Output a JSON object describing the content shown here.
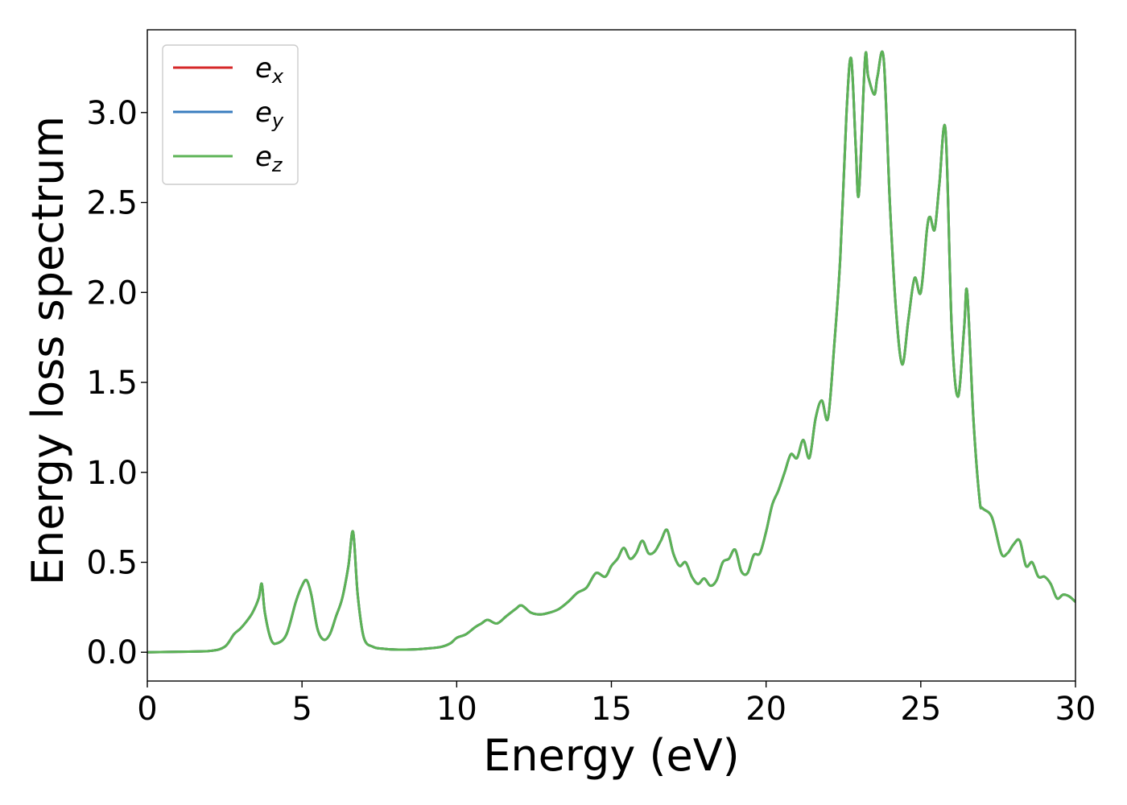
{
  "chart_data": {
    "type": "line",
    "xlabel": "Energy (eV)",
    "ylabel": "Energy loss spectrum",
    "xlim": [
      0,
      30
    ],
    "ylim": [
      -0.16,
      3.46
    ],
    "xticks": [
      0,
      5,
      10,
      15,
      20,
      25,
      30
    ],
    "xtick_labels": [
      "0",
      "5",
      "10",
      "15",
      "20",
      "25",
      "30"
    ],
    "yticks": [
      0.0,
      0.5,
      1.0,
      1.5,
      2.0,
      2.5,
      3.0
    ],
    "ytick_labels": [
      "0.0",
      "0.5",
      "1.0",
      "1.5",
      "2.0",
      "2.5",
      "3.0"
    ],
    "grid": false,
    "legend_position": "top-left",
    "series": [
      {
        "name": "e",
        "subscript": "x",
        "color": "#d62728"
      },
      {
        "name": "e",
        "subscript": "y",
        "color": "#3a7dbf"
      },
      {
        "name": "e",
        "subscript": "z",
        "color": "#5cb356"
      }
    ],
    "x": [
      0,
      1,
      2,
      2.5,
      2.8,
      3.0,
      3.2,
      3.4,
      3.6,
      3.7,
      3.8,
      4.0,
      4.2,
      4.5,
      4.8,
      5.0,
      5.15,
      5.3,
      5.5,
      5.7,
      5.9,
      6.1,
      6.3,
      6.5,
      6.65,
      6.8,
      7.0,
      7.3,
      7.6,
      8.0,
      8.5,
      9.0,
      9.5,
      9.8,
      10.0,
      10.3,
      10.6,
      10.8,
      11.0,
      11.3,
      11.6,
      11.9,
      12.1,
      12.4,
      12.7,
      13.0,
      13.3,
      13.6,
      13.9,
      14.2,
      14.5,
      14.8,
      15.0,
      15.2,
      15.4,
      15.6,
      15.8,
      16.0,
      16.2,
      16.4,
      16.6,
      16.8,
      17.0,
      17.2,
      17.4,
      17.6,
      17.8,
      18.0,
      18.2,
      18.4,
      18.6,
      18.8,
      19.0,
      19.2,
      19.4,
      19.6,
      19.8,
      20.0,
      20.2,
      20.4,
      20.6,
      20.8,
      21.0,
      21.2,
      21.4,
      21.6,
      21.8,
      22.0,
      22.2,
      22.4,
      22.6,
      22.75,
      22.9,
      23.0,
      23.2,
      23.3,
      23.5,
      23.6,
      23.8,
      24.0,
      24.2,
      24.4,
      24.6,
      24.8,
      25.0,
      25.2,
      25.3,
      25.45,
      25.6,
      25.8,
      26.0,
      26.2,
      26.4,
      26.5,
      26.7,
      26.9,
      27.0,
      27.3,
      27.6,
      27.8,
      28.0,
      28.2,
      28.4,
      28.6,
      28.8,
      29.0,
      29.2,
      29.4,
      29.6,
      29.8,
      30.0
    ],
    "values": [
      0.0,
      0.003,
      0.007,
      0.03,
      0.1,
      0.13,
      0.17,
      0.22,
      0.3,
      0.38,
      0.22,
      0.07,
      0.05,
      0.1,
      0.28,
      0.37,
      0.4,
      0.32,
      0.13,
      0.07,
      0.1,
      0.2,
      0.3,
      0.48,
      0.67,
      0.32,
      0.08,
      0.03,
      0.02,
      0.015,
      0.015,
      0.02,
      0.03,
      0.05,
      0.08,
      0.1,
      0.14,
      0.16,
      0.18,
      0.16,
      0.2,
      0.24,
      0.26,
      0.22,
      0.21,
      0.22,
      0.24,
      0.28,
      0.33,
      0.36,
      0.44,
      0.42,
      0.48,
      0.52,
      0.58,
      0.52,
      0.55,
      0.62,
      0.55,
      0.56,
      0.62,
      0.68,
      0.55,
      0.48,
      0.5,
      0.42,
      0.38,
      0.41,
      0.37,
      0.4,
      0.5,
      0.52,
      0.57,
      0.45,
      0.44,
      0.54,
      0.55,
      0.67,
      0.82,
      0.9,
      1.0,
      1.1,
      1.08,
      1.18,
      1.08,
      1.3,
      1.4,
      1.3,
      1.7,
      2.2,
      3.0,
      3.3,
      2.8,
      2.55,
      3.3,
      3.2,
      3.1,
      3.2,
      3.3,
      2.5,
      1.9,
      1.6,
      1.85,
      2.08,
      2.0,
      2.35,
      2.42,
      2.35,
      2.6,
      2.9,
      1.8,
      1.42,
      1.8,
      2.0,
      1.3,
      0.85,
      0.8,
      0.75,
      0.55,
      0.55,
      0.6,
      0.62,
      0.48,
      0.5,
      0.42,
      0.42,
      0.38,
      0.3,
      0.32,
      0.31,
      0.28
    ]
  }
}
